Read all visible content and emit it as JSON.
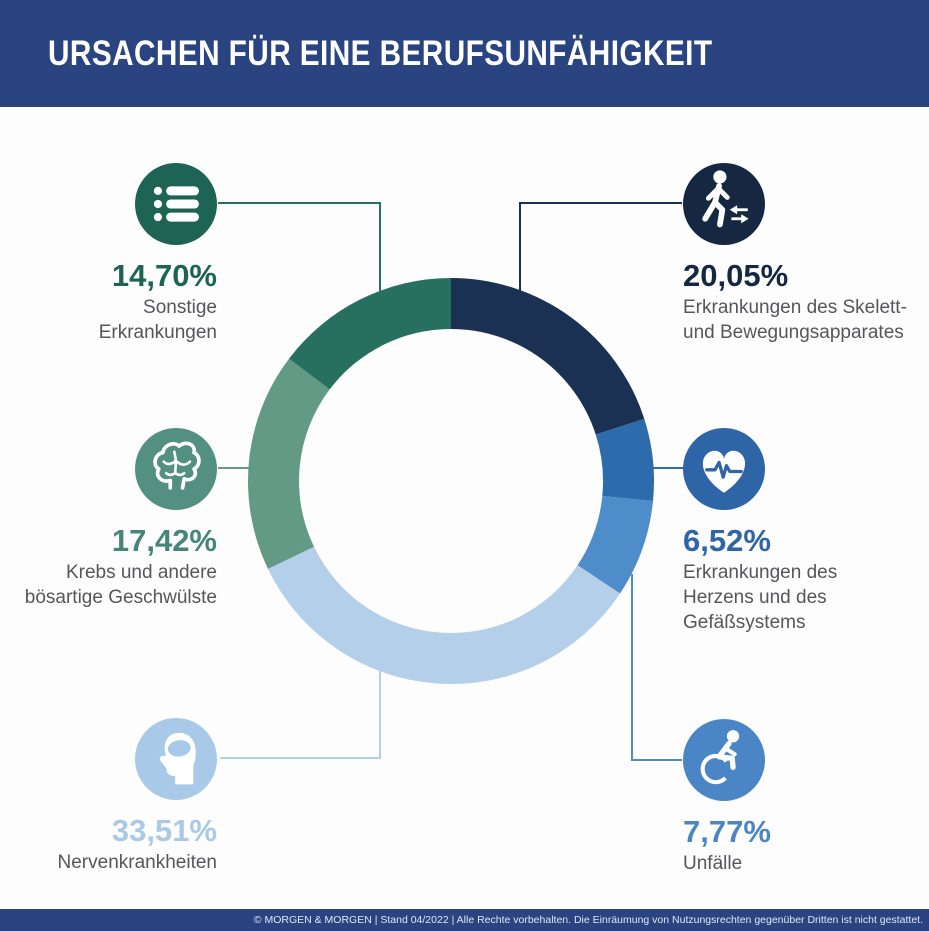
{
  "header": {
    "title": "URSACHEN FÜR EINE BERUFSUNFÄHIGKEIT"
  },
  "footer": {
    "text": "© MORGEN & MORGEN  | Stand 04/2022 | Alle Rechte vorbehalten. Die Einräumung von Nutzungsrechten gegenüber Dritten ist nicht gestattet."
  },
  "colors": {
    "banner": "#2a4381",
    "background": "#fdfdfd",
    "label_gray": "#55565a"
  },
  "chart_data": {
    "type": "pie",
    "subtype": "donut",
    "title": "Ursachen für eine Berufsunfähigkeit",
    "start_angle_deg": 0,
    "direction": "clockwise-from-12-oclock",
    "legend_position": "callouts-around-donut",
    "segments": [
      {
        "id": "skelett",
        "label": "Erkrankungen des Skelett- und Bewegungsapparates",
        "value": 20.05,
        "pct_label": "20,05%",
        "color": "#1b3153",
        "icon": "walking-person-icon"
      },
      {
        "id": "herz",
        "label": "Erkrankungen des Herzens und des Gefäßsystems",
        "value": 6.52,
        "pct_label": "6,52%",
        "color": "#2e6bad",
        "icon": "heart-pulse-icon"
      },
      {
        "id": "unfaelle",
        "label": "Unfälle",
        "value": 7.77,
        "pct_label": "7,77%",
        "color": "#4f8dca",
        "icon": "wheelchair-icon"
      },
      {
        "id": "nerven",
        "label": "Nervenkrankheiten",
        "value": 33.51,
        "pct_label": "33,51%",
        "color": "#b3cfe9",
        "icon": "head-profile-icon"
      },
      {
        "id": "krebs",
        "label": "Krebs und andere bösartige Geschwülste",
        "value": 17.42,
        "pct_label": "17,42%",
        "color": "#639a86",
        "icon": "brain-icon"
      },
      {
        "id": "sonstige",
        "label": "Sonstige Erkrankungen",
        "value": 14.7,
        "pct_label": "14,70%",
        "color": "#27705f",
        "icon": "list-icon"
      }
    ]
  },
  "callouts": {
    "tl": {
      "pct": "14,70%",
      "label": "Sonstige\nErkrankungen",
      "circle_color": "#1e6454",
      "pct_color": "#1e6454"
    },
    "tr": {
      "pct": "20,05%",
      "label": "Erkrankungen des Skelett-\nund Bewegungsapparates",
      "circle_color": "#152741",
      "pct_color": "#152741"
    },
    "ml": {
      "pct": "17,42%",
      "label": "Krebs und andere\nbösartige Geschwülste",
      "circle_color": "#549081",
      "pct_color": "#468579"
    },
    "mr": {
      "pct": "6,52%",
      "label": "Erkrankungen des\nHerzens und des\nGefäßsystems",
      "circle_color": "#2d65a7",
      "pct_color": "#2d65a7"
    },
    "bl": {
      "pct": "33,51%",
      "label": "Nervenkrankheiten",
      "circle_color": "#a9c9e8",
      "pct_color": "#a9c9e8"
    },
    "br": {
      "pct": "7,77%",
      "label": "Unfälle",
      "circle_color": "#4a86c5",
      "pct_color": "#4a86c5"
    }
  }
}
